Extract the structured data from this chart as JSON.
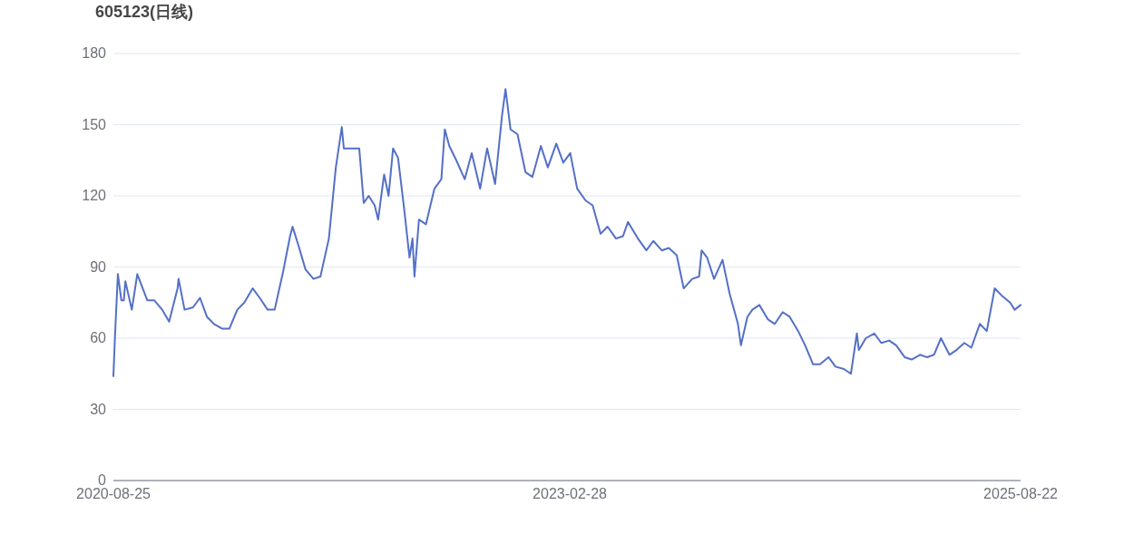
{
  "chart_data": {
    "type": "line",
    "title": "605123(日线)",
    "x": [
      "2020-08-25",
      "2020-08-28",
      "2020-09-03",
      "2020-09-10",
      "2020-09-15",
      "2020-09-18",
      "2020-10-01",
      "2020-10-12",
      "2020-11-01",
      "2020-11-15",
      "2020-12-01",
      "2020-12-15",
      "2021-01-01",
      "2021-01-03",
      "2021-01-15",
      "2021-02-01",
      "2021-02-15",
      "2021-03-01",
      "2021-03-15",
      "2021-04-01",
      "2021-04-15",
      "2021-05-01",
      "2021-05-15",
      "2021-06-01",
      "2021-06-15",
      "2021-07-01",
      "2021-07-15",
      "2021-08-01",
      "2021-08-15",
      "2021-08-20",
      "2021-09-01",
      "2021-09-15",
      "2021-10-01",
      "2021-10-15",
      "2021-11-01",
      "2021-11-15",
      "2021-11-27",
      "2021-12-01",
      "2021-12-15",
      "2022-01-01",
      "2022-01-10",
      "2022-01-20",
      "2022-02-01",
      "2022-02-08",
      "2022-02-20",
      "2022-03-01",
      "2022-03-10",
      "2022-03-20",
      "2022-04-01",
      "2022-04-12",
      "2022-04-18",
      "2022-04-22",
      "2022-05-01",
      "2022-05-15",
      "2022-06-01",
      "2022-06-15",
      "2022-06-22",
      "2022-07-01",
      "2022-07-15",
      "2022-08-01",
      "2022-08-15",
      "2022-09-01",
      "2022-09-15",
      "2022-10-01",
      "2022-10-15",
      "2022-10-22",
      "2022-11-01",
      "2022-11-15",
      "2022-12-01",
      "2022-12-15",
      "2023-01-01",
      "2023-01-15",
      "2023-02-01",
      "2023-02-15",
      "2023-03-01",
      "2023-03-15",
      "2023-04-01",
      "2023-04-15",
      "2023-05-01",
      "2023-05-15",
      "2023-06-01",
      "2023-06-15",
      "2023-06-25",
      "2023-07-15",
      "2023-08-01",
      "2023-08-15",
      "2023-09-01",
      "2023-09-15",
      "2023-10-01",
      "2023-10-15",
      "2023-11-01",
      "2023-11-15",
      "2023-11-20",
      "2023-12-01",
      "2023-12-15",
      "2024-01-01",
      "2024-01-15",
      "2024-02-01",
      "2024-02-07",
      "2024-02-20",
      "2024-03-01",
      "2024-03-15",
      "2024-04-01",
      "2024-04-15",
      "2024-05-01",
      "2024-05-15",
      "2024-06-01",
      "2024-06-15",
      "2024-07-01",
      "2024-07-15",
      "2024-08-01",
      "2024-08-15",
      "2024-09-01",
      "2024-09-15",
      "2024-09-27",
      "2024-10-01",
      "2024-10-15",
      "2024-11-01",
      "2024-11-15",
      "2024-12-01",
      "2024-12-15",
      "2025-01-01",
      "2025-01-15",
      "2025-02-01",
      "2025-02-15",
      "2025-03-01",
      "2025-03-15",
      "2025-04-01",
      "2025-04-15",
      "2025-05-01",
      "2025-05-15",
      "2025-06-01",
      "2025-06-15",
      "2025-07-01",
      "2025-07-15",
      "2025-08-01",
      "2025-08-10",
      "2025-08-22"
    ],
    "series": [
      {
        "color": "#5470c6",
        "values": [
          44,
          60,
          87,
          76,
          76,
          84,
          72,
          87,
          76,
          76,
          72,
          67,
          81,
          85,
          72,
          73,
          77,
          69,
          66,
          64,
          64,
          72,
          75,
          81,
          77,
          72,
          72,
          88,
          103,
          107,
          99,
          89,
          85,
          86,
          102,
          132,
          149,
          140,
          140,
          140,
          117,
          120,
          116,
          110,
          129,
          120,
          140,
          136,
          115,
          94,
          102,
          86,
          110,
          108,
          123,
          127,
          148,
          141,
          135,
          127,
          138,
          123,
          140,
          125,
          154,
          165,
          148,
          146,
          130,
          128,
          141,
          132,
          142,
          134,
          138,
          123,
          118,
          116,
          104,
          107,
          102,
          103,
          109,
          102,
          97,
          101,
          97,
          98,
          95,
          81,
          85,
          86,
          97,
          94,
          85,
          93,
          79,
          66,
          57,
          69,
          72,
          74,
          68,
          66,
          71,
          69,
          63,
          57,
          49,
          49,
          52,
          48,
          47,
          45,
          62,
          55,
          60,
          62,
          58,
          59,
          57,
          52,
          51,
          53,
          52,
          53,
          60,
          53,
          55,
          58,
          56,
          66,
          63,
          81,
          78,
          75,
          72,
          74
        ]
      }
    ],
    "xlim": [
      "2020-08-25",
      "2025-08-22"
    ],
    "xticks": [
      "2020-08-25",
      "2023-02-28",
      "2025-08-22"
    ],
    "ylim": [
      0,
      180
    ],
    "yticks": [
      0,
      30,
      60,
      90,
      120,
      150,
      180
    ],
    "grid": "y",
    "marker": "none",
    "line_style": "solid"
  }
}
